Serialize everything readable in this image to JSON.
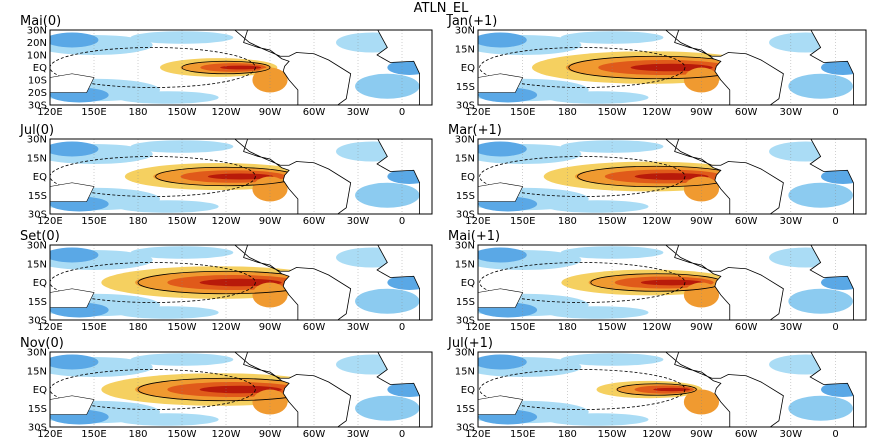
{
  "title": "ATLN_EL",
  "lon_labels": [
    "120E",
    "150E",
    "180",
    "150W",
    "120W",
    "90W",
    "60W",
    "30W",
    "0"
  ],
  "panels": [
    {
      "label": "Mai(0)",
      "lat_labels": [
        "30N",
        "20N",
        "10N",
        "EQ",
        "10S",
        "20S",
        "30S"
      ]
    },
    {
      "label": "Jan(+1)",
      "lat_labels": [
        "30N",
        "15N",
        "EQ",
        "15S",
        "30S"
      ]
    },
    {
      "label": "Jul(0)",
      "lat_labels": [
        "30N",
        "15N",
        "EQ",
        "15S",
        "30S"
      ]
    },
    {
      "label": "Mar(+1)",
      "lat_labels": [
        "30N",
        "15N",
        "EQ",
        "15S",
        "30S"
      ]
    },
    {
      "label": "Set(0)",
      "lat_labels": [
        "30N",
        "15N",
        "EQ",
        "15S",
        "30S"
      ]
    },
    {
      "label": "Mai(+1)",
      "lat_labels": [
        "30N",
        "15N",
        "EQ",
        "15S",
        "30S"
      ]
    },
    {
      "label": "Nov(0)",
      "lat_labels": [
        "30N",
        "15N",
        "EQ",
        "15S",
        "30S"
      ]
    },
    {
      "label": "Jul(+1)",
      "lat_labels": [
        "30N",
        "15N",
        "EQ",
        "15S",
        "30S"
      ]
    }
  ]
}
